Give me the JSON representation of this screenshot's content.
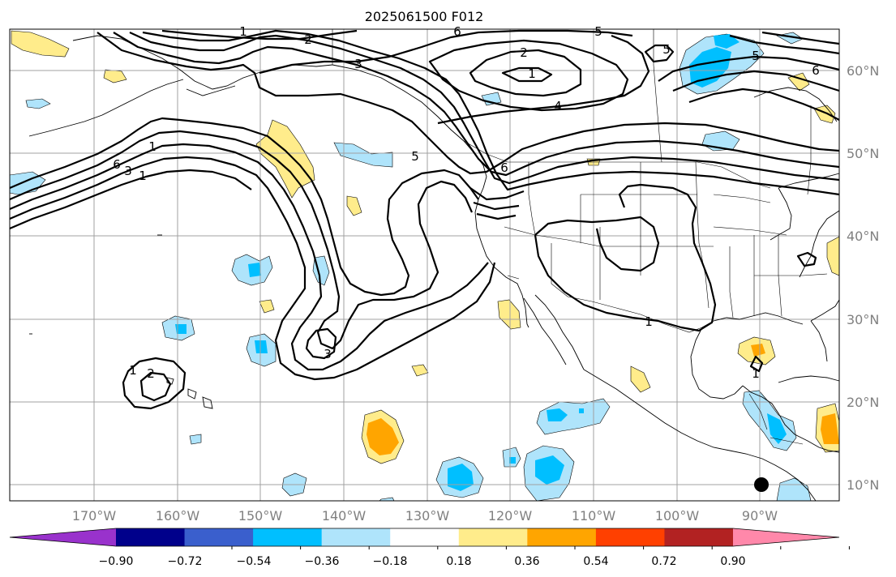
{
  "title": "2025061500 F012",
  "lon_labels": [
    "170°W",
    "160°W",
    "150°W",
    "140°W",
    "130°W",
    "120°W",
    "110°W",
    "100°W",
    "90°W"
  ],
  "lat_labels": [
    "60°N",
    "50°N",
    "40°N",
    "30°N",
    "20°N",
    "10°N"
  ],
  "colorbar": {
    "colors": [
      "#9932cc",
      "#00008b",
      "#3a5fcd",
      "#00bfff",
      "#afe4fb",
      "#ffffff",
      "#ffec8b",
      "#ffa500",
      "#ff4000",
      "#b22222",
      "#ff88aa"
    ],
    "labels": [
      "−0.90",
      "−0.72",
      "−0.54",
      "−0.36",
      "−0.18",
      "0.18",
      "0.36",
      "0.54",
      "0.72",
      "0.90"
    ]
  },
  "contour_labels": [
    "1",
    "2",
    "3",
    "5",
    "6",
    "2",
    "1",
    "4",
    "5",
    "6",
    "5",
    "1",
    "1",
    "6",
    "5",
    "6",
    "3",
    "1",
    "3",
    "1",
    "2",
    "1"
  ]
}
